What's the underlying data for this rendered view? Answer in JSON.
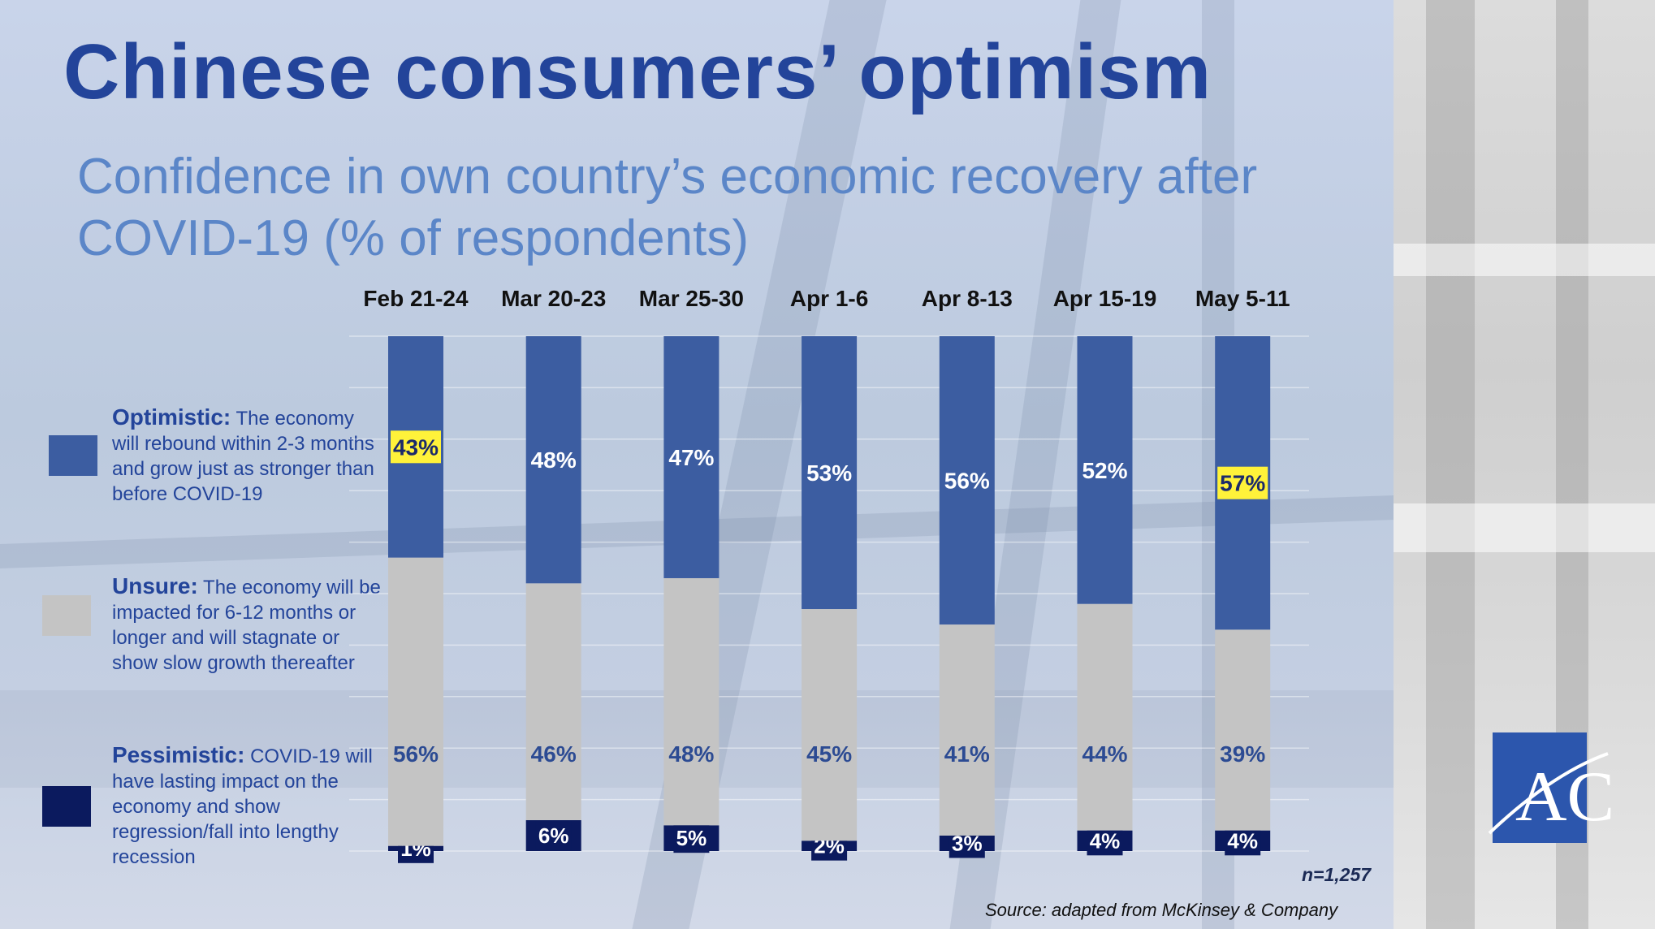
{
  "title": "Chinese consumers’ optimism",
  "subtitle": "Confidence in own country’s economic recovery after COVID-19 (% of respondents)",
  "legend": {
    "optimistic": {
      "label": "Optimistic:",
      "text": " The economy will rebound within 2-3 months and grow just as stronger than before COVID-19"
    },
    "unsure": {
      "label": "Unsure:",
      "text": " The economy will be impacted for 6-12 months or longer and will stagnate or show slow growth thereafter"
    },
    "pessimistic": {
      "label": "Pessimistic:",
      "text": " COVID-19 will have lasting impact on the economy and show regression/fall into lengthy recession"
    }
  },
  "sample": "n=1,257",
  "source": "Source: adapted from McKinsey & Company",
  "logo_text": "ACI",
  "colors": {
    "optimistic": "#3c5da1",
    "unsure": "#c4c4c4",
    "pessimistic": "#0b1a5e",
    "highlight": "#fff23a",
    "unsure_label": "#2c4b93"
  },
  "chart_data": {
    "type": "bar",
    "stacked": true,
    "categories": [
      "Feb 21-24",
      "Mar 20-23",
      "Mar 25-30",
      "Apr 1-6",
      "Apr 8-13",
      "Apr 15-19",
      "May 5-11"
    ],
    "series": [
      {
        "name": "Pessimistic",
        "values": [
          1,
          6,
          5,
          2,
          3,
          4,
          4
        ],
        "labels": [
          "1%",
          "6%",
          "5%",
          "2%",
          "3%",
          "4%",
          "4%"
        ]
      },
      {
        "name": "Unsure",
        "values": [
          56,
          46,
          48,
          45,
          41,
          44,
          39
        ],
        "labels": [
          "56%",
          "46%",
          "48%",
          "45%",
          "41%",
          "44%",
          "39%"
        ]
      },
      {
        "name": "Optimistic",
        "values": [
          43,
          48,
          47,
          53,
          56,
          52,
          57
        ],
        "labels": [
          "43%",
          "48%",
          "47%",
          "53%",
          "56%",
          "52%",
          "57%"
        ]
      }
    ],
    "highlighted": [
      {
        "series": "Optimistic",
        "index": 0
      },
      {
        "series": "Optimistic",
        "index": 6
      }
    ],
    "ylim": [
      0,
      100
    ],
    "grid": true
  }
}
